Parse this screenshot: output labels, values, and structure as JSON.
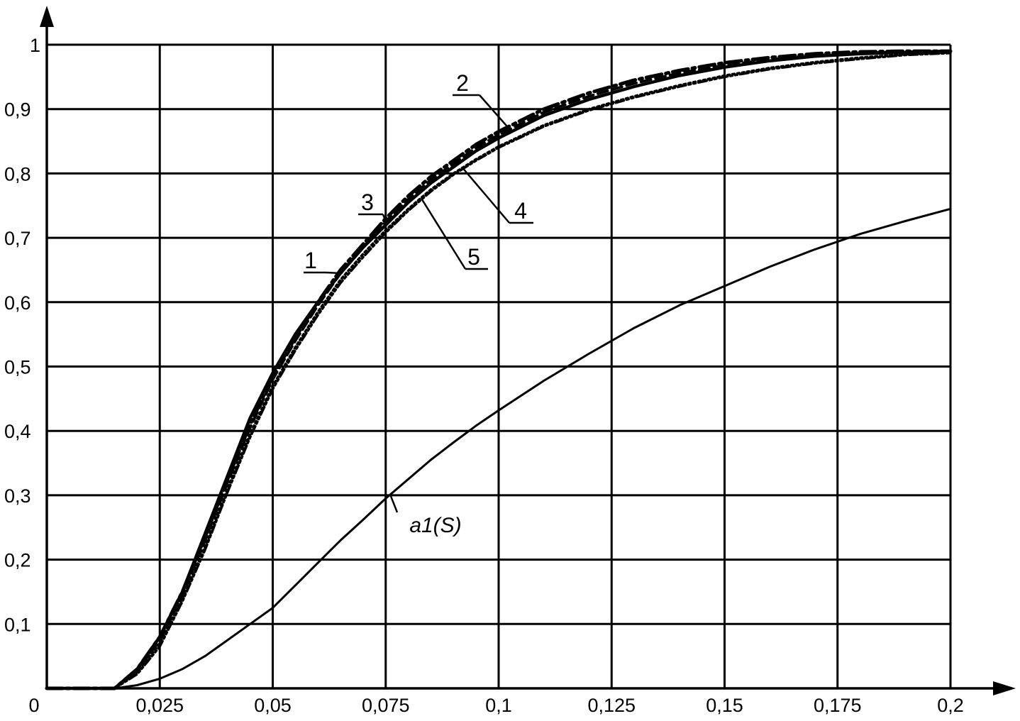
{
  "chart_data": {
    "type": "line",
    "title": "",
    "xlabel": "",
    "ylabel": "",
    "xlim": [
      0,
      0.2
    ],
    "ylim": [
      0,
      1
    ],
    "grid": true,
    "x_ticks": [
      "0",
      "0,025",
      "0,05",
      "0,075",
      "0,1",
      "0,125",
      "0,15",
      "0,175",
      "0,2"
    ],
    "y_ticks": [
      "0,1",
      "0,2",
      "0,3",
      "0,4",
      "0,5",
      "0,6",
      "0,7",
      "0,8",
      "0,9",
      "1"
    ],
    "x": [
      0,
      0.015,
      0.02,
      0.025,
      0.03,
      0.035,
      0.04,
      0.045,
      0.05,
      0.055,
      0.06,
      0.065,
      0.07,
      0.075,
      0.08,
      0.085,
      0.09,
      0.095,
      0.1,
      0.11,
      0.12,
      0.13,
      0.14,
      0.15,
      0.16,
      0.17,
      0.18,
      0.19,
      0.2
    ],
    "series": [
      {
        "name": "1",
        "style": "solid",
        "values": [
          0,
          0,
          0.03,
          0.08,
          0.15,
          0.24,
          0.33,
          0.42,
          0.49,
          0.55,
          0.6,
          0.645,
          0.685,
          0.72,
          0.755,
          0.785,
          0.81,
          0.835,
          0.855,
          0.89,
          0.915,
          0.935,
          0.952,
          0.965,
          0.975,
          0.982,
          0.986,
          0.988,
          0.99
        ]
      },
      {
        "name": "2",
        "style": "dashdot",
        "values": [
          0,
          0,
          0.03,
          0.08,
          0.15,
          0.235,
          0.325,
          0.41,
          0.485,
          0.545,
          0.6,
          0.65,
          0.69,
          0.73,
          0.765,
          0.795,
          0.82,
          0.845,
          0.865,
          0.9,
          0.925,
          0.945,
          0.96,
          0.972,
          0.98,
          0.986,
          0.989,
          0.99,
          0.99
        ]
      },
      {
        "name": "3",
        "style": "dashed",
        "values": [
          0,
          0,
          0.028,
          0.075,
          0.145,
          0.23,
          0.32,
          0.405,
          0.48,
          0.54,
          0.595,
          0.645,
          0.685,
          0.725,
          0.76,
          0.79,
          0.815,
          0.84,
          0.86,
          0.895,
          0.92,
          0.94,
          0.956,
          0.968,
          0.977,
          0.983,
          0.987,
          0.989,
          0.99
        ]
      },
      {
        "name": "4",
        "style": "dotted",
        "values": [
          0,
          0,
          0.025,
          0.07,
          0.14,
          0.22,
          0.31,
          0.395,
          0.47,
          0.53,
          0.585,
          0.635,
          0.675,
          0.712,
          0.745,
          0.775,
          0.8,
          0.822,
          0.842,
          0.875,
          0.9,
          0.92,
          0.937,
          0.952,
          0.964,
          0.973,
          0.98,
          0.985,
          0.988
        ]
      },
      {
        "name": "5",
        "style": "dashdotdot",
        "values": [
          0,
          0,
          0.022,
          0.065,
          0.135,
          0.215,
          0.305,
          0.39,
          0.465,
          0.525,
          0.58,
          0.63,
          0.67,
          0.708,
          0.742,
          0.772,
          0.798,
          0.82,
          0.84,
          0.873,
          0.898,
          0.918,
          0.935,
          0.95,
          0.962,
          0.971,
          0.978,
          0.984,
          0.987
        ]
      },
      {
        "name": "a1(S)",
        "style": "thin",
        "values": [
          0,
          0,
          0.005,
          0.015,
          0.03,
          0.05,
          0.075,
          0.1,
          0.125,
          0.16,
          0.195,
          0.23,
          0.262,
          0.295,
          0.325,
          0.355,
          0.382,
          0.408,
          0.432,
          0.478,
          0.52,
          0.56,
          0.595,
          0.625,
          0.655,
          0.682,
          0.706,
          0.726,
          0.745
        ]
      }
    ],
    "annotations": [
      {
        "text": "1",
        "series": "1",
        "at_x": 0.065
      },
      {
        "text": "2",
        "series": "2",
        "at_x": 0.102
      },
      {
        "text": "3",
        "series": "3",
        "at_x": 0.075
      },
      {
        "text": "4",
        "series": "4",
        "at_x": 0.092
      },
      {
        "text": "5",
        "series": "5",
        "at_x": 0.083
      },
      {
        "text": "a1(S)",
        "series": "a1(S)",
        "at_x": 0.076
      }
    ]
  }
}
